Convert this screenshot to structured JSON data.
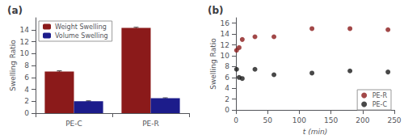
{
  "chart_data": [
    {
      "type": "bar",
      "title": "(a)",
      "categories": [
        "PE-C",
        "PE-R"
      ],
      "series": [
        {
          "name": "Weight Swelling",
          "color": "#8B1A1A",
          "values": [
            7.0,
            14.3
          ],
          "errors": [
            0.12,
            0.12
          ]
        },
        {
          "name": "Volume Swelling",
          "color": "#1C1C8B",
          "values": [
            2.0,
            2.5
          ],
          "errors": [
            0.08,
            0.08
          ]
        }
      ],
      "ylabel": "Swelling Ratio",
      "ylim": [
        0,
        16
      ],
      "yticks": [
        0,
        2,
        4,
        6,
        8,
        10,
        12,
        14
      ],
      "legend": "upper left",
      "grid": false
    },
    {
      "type": "scatter",
      "title": "(b)",
      "series": [
        {
          "name": "PE-R",
          "color": "#8B1A1A",
          "x": [
            1,
            5,
            10,
            30,
            60,
            120,
            180,
            240
          ],
          "values": [
            11.0,
            11.5,
            13.0,
            13.5,
            13.5,
            15.0,
            15.0,
            14.8
          ]
        },
        {
          "name": "PE-C",
          "color": "#1a1a1a",
          "x": [
            1,
            5,
            10,
            30,
            60,
            120,
            180,
            240
          ],
          "values": [
            7.5,
            6.0,
            5.8,
            7.5,
            6.5,
            6.8,
            7.2,
            7.0
          ]
        }
      ],
      "xlabel": "t (min)",
      "ylabel": "Swelling Ratio",
      "xlim": [
        0,
        250
      ],
      "xticks": [
        0,
        50,
        100,
        150,
        200,
        250
      ],
      "ylim": [
        0,
        17
      ],
      "yticks": [
        0,
        2,
        4,
        6,
        8,
        10,
        12,
        14,
        16
      ],
      "legend": "lower right",
      "grid": false
    }
  ]
}
